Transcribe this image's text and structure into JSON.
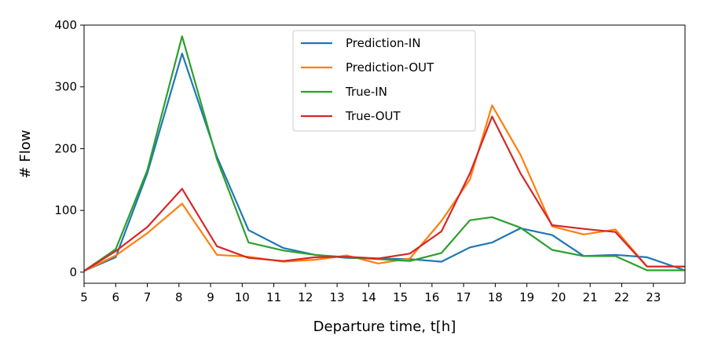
{
  "chart_data": {
    "type": "line",
    "title": "",
    "xlabel": "Departure time, t[h]",
    "ylabel": "# Flow",
    "xlim": [
      5,
      24
    ],
    "ylim": [
      -18,
      400
    ],
    "xticks": [
      "5",
      "6",
      "7",
      "8",
      "9",
      "10",
      "11",
      "12",
      "13",
      "14",
      "15",
      "16",
      "17",
      "18",
      "19",
      "20",
      "21",
      "22",
      "23"
    ],
    "yticks": [
      "0",
      "100",
      "200",
      "300",
      "400"
    ],
    "legend": {
      "position": "top-center"
    },
    "grid": false,
    "series": [
      {
        "name": "Prediction-IN",
        "color": "#1f77b4",
        "x": [
          5,
          6,
          7,
          8.1,
          9.2,
          10.2,
          11.3,
          12.3,
          13.3,
          14.3,
          15.3,
          16.3,
          17.2,
          17.9,
          18.8,
          19.8,
          20.8,
          21.8,
          22.8,
          24
        ],
        "y": [
          2,
          24,
          160,
          354,
          187,
          68,
          39,
          28,
          23,
          22,
          21,
          17,
          40,
          48,
          71,
          60,
          26,
          28,
          24,
          3
        ]
      },
      {
        "name": "Prediction-OUT",
        "color": "#ff7f0e",
        "x": [
          5,
          6,
          7,
          8.1,
          9.2,
          10.2,
          11.3,
          12.3,
          13.3,
          14.3,
          15.3,
          16.3,
          17.2,
          17.9,
          18.8,
          19.8,
          20.8,
          21.8,
          22.8,
          24
        ],
        "y": [
          2,
          27,
          63,
          111,
          28,
          25,
          17,
          20,
          27,
          14,
          22,
          83,
          150,
          270,
          190,
          74,
          61,
          69,
          9,
          9
        ]
      },
      {
        "name": "True-IN",
        "color": "#2ca02c",
        "x": [
          5,
          6,
          7,
          8.1,
          9.2,
          10.2,
          11.3,
          12.3,
          13.3,
          14.3,
          15.3,
          16.3,
          17.2,
          17.9,
          18.8,
          19.8,
          20.8,
          21.8,
          22.8,
          24
        ],
        "y": [
          2,
          37,
          165,
          382,
          183,
          48,
          35,
          28,
          24,
          21,
          18,
          31,
          84,
          89,
          72,
          36,
          26,
          26,
          3,
          3
        ]
      },
      {
        "name": "True-OUT",
        "color": "#d62728",
        "x": [
          5,
          6,
          7,
          8.1,
          9.2,
          10.2,
          11.3,
          12.3,
          13.3,
          14.3,
          15.3,
          16.3,
          17.2,
          17.9,
          18.8,
          19.8,
          20.8,
          21.8,
          22.8,
          24
        ],
        "y": [
          2,
          34,
          73,
          135,
          42,
          23,
          18,
          24,
          25,
          22,
          30,
          66,
          160,
          252,
          160,
          76,
          70,
          65,
          9,
          9
        ]
      }
    ]
  }
}
